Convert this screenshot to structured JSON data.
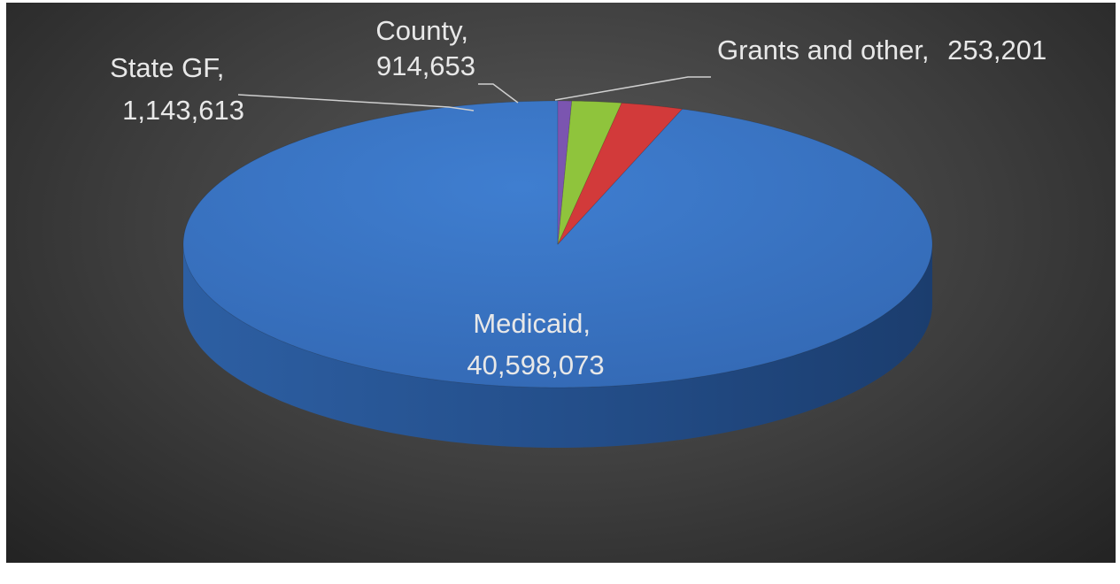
{
  "chart_data": {
    "type": "pie",
    "style": "3d",
    "title": "",
    "legend": "none",
    "start_angle_deg": 0,
    "direction": "counterclockwise",
    "slices": [
      {
        "name": "Medicaid",
        "value": 40598073,
        "label_name": "Medicaid,",
        "label_value": "40,598,073",
        "color": "#3a76c8",
        "side_color": "#234a82"
      },
      {
        "name": "State GF",
        "value": 1143613,
        "label_name": "State GF,",
        "label_value": "1,143,613",
        "color": "#d23a3a",
        "side_color": "#8a2424"
      },
      {
        "name": "County",
        "value": 914653,
        "label_name": "County,",
        "label_value": "914,653",
        "color": "#8fc43c",
        "side_color": "#5a7f22"
      },
      {
        "name": "Grants and other",
        "value": 253201,
        "label_name": "Grants and other,",
        "label_value": "253,201",
        "color": "#7b55b0",
        "side_color": "#4e3575"
      }
    ]
  }
}
